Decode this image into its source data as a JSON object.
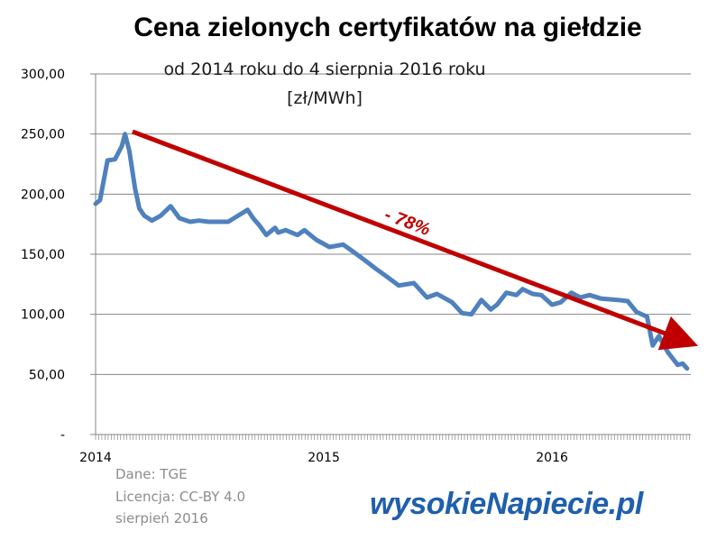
{
  "chart_data": {
    "type": "line",
    "title": "Cena zielonych certyfikatów na giełdzie",
    "subtitle": "od 2014 roku do 4 sierpnia 2016 roku",
    "unit": "[zł/MWh]",
    "ylim": [
      0,
      300
    ],
    "y_ticks": [
      "-",
      "50,00",
      "100,00",
      "150,00",
      "200,00",
      "250,00",
      "300,00"
    ],
    "x_ticks": [
      "2014",
      "2015",
      "2016"
    ],
    "xlim": [
      "2014-01-01",
      "2016-08-10"
    ],
    "grid": true,
    "series": [
      {
        "color": "#4f81bd",
        "x": [
          "2014-01-01",
          "2014-01-08",
          "2014-01-20",
          "2014-02-01",
          "2014-02-12",
          "2014-02-17",
          "2014-02-24",
          "2014-03-05",
          "2014-03-12",
          "2014-03-20",
          "2014-04-01",
          "2014-04-15",
          "2014-05-01",
          "2014-05-15",
          "2014-06-01",
          "2014-06-15",
          "2014-07-01",
          "2014-08-01",
          "2014-09-01",
          "2014-09-10",
          "2014-09-20",
          "2014-10-01",
          "2014-10-15",
          "2014-10-20",
          "2014-11-01",
          "2014-11-20",
          "2014-12-01",
          "2014-12-20",
          "2015-01-10",
          "2015-02-01",
          "2015-02-20",
          "2015-03-10",
          "2015-03-25",
          "2015-04-10",
          "2015-05-01",
          "2015-05-25",
          "2015-06-15",
          "2015-07-01",
          "2015-07-25",
          "2015-08-10",
          "2015-08-25",
          "2015-09-10",
          "2015-09-25",
          "2015-10-05",
          "2015-10-20",
          "2015-11-05",
          "2015-11-15",
          "2015-12-01",
          "2015-12-15",
          "2016-01-01",
          "2016-01-15",
          "2016-02-01",
          "2016-02-15",
          "2016-03-01",
          "2016-03-20",
          "2016-04-15",
          "2016-05-01",
          "2016-05-15",
          "2016-06-01",
          "2016-06-10",
          "2016-06-20",
          "2016-06-28",
          "2016-07-05",
          "2016-07-20",
          "2016-07-28",
          "2016-08-04"
        ],
        "values": [
          192,
          195,
          228,
          229,
          240,
          250,
          236,
          205,
          188,
          182,
          178,
          182,
          190,
          180,
          177,
          178,
          177,
          177,
          187,
          180,
          174,
          166,
          172,
          168,
          170,
          166,
          170,
          162,
          156,
          158,
          151,
          144,
          138,
          132,
          124,
          126,
          114,
          117,
          110,
          101,
          100,
          112,
          104,
          108,
          118,
          116,
          121,
          117,
          116,
          108,
          110,
          118,
          114,
          116,
          113,
          112,
          111,
          102,
          98,
          74,
          82,
          74,
          68,
          58,
          59,
          55
        ]
      }
    ],
    "trend_arrow": {
      "from": [
        "2014-03-01",
        252
      ],
      "to": [
        "2016-08-15",
        75
      ],
      "label": "- 78%",
      "color": "#c00000"
    }
  },
  "footer": {
    "source": "Dane: TGE",
    "license": "Licencja: CC-BY 4.0",
    "date": "sierpień 2016"
  },
  "logo": {
    "part1": "wysokie",
    "slash": "N",
    "part2": "apiecie.pl"
  }
}
